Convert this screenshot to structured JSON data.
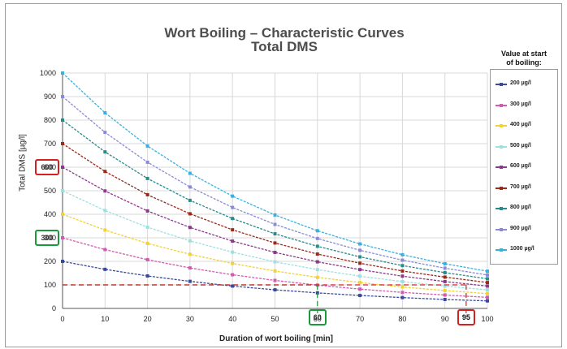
{
  "chart_data": {
    "type": "line",
    "title": "Wort Boiling – Characteristic Curves",
    "subtitle": "Total DMS",
    "xlabel": "Duration of wort boiling [min]",
    "ylabel": "Total DMS [µg/l]",
    "xlim": [
      0,
      100
    ],
    "ylim": [
      0,
      1000
    ],
    "x_ticks": [
      "0",
      "10",
      "20",
      "30",
      "40",
      "50",
      "60",
      "70",
      "80",
      "90",
      "100"
    ],
    "y_ticks": [
      "0",
      "100",
      "200",
      "300",
      "400",
      "500",
      "600",
      "700",
      "800",
      "900",
      "1000"
    ],
    "grid": true,
    "legend": {
      "position": "right",
      "title_line1": "Value at start",
      "title_line2": "of boiling:"
    },
    "x": [
      0,
      10,
      20,
      30,
      40,
      50,
      60,
      70,
      80,
      90,
      100
    ],
    "series": [
      {
        "name": "200 µg/l",
        "color": "#3a4a9a",
        "values": [
          200,
          166,
          138,
          115,
          95,
          79,
          66,
          55,
          46,
          38,
          32
        ]
      },
      {
        "name": "300 µg/l",
        "color": "#d05cb0",
        "values": [
          300,
          250,
          207,
          172,
          143,
          119,
          99,
          82,
          68,
          57,
          47
        ]
      },
      {
        "name": "400 µg/l",
        "color": "#f0d23a",
        "values": [
          400,
          333,
          276,
          230,
          191,
          159,
          132,
          110,
          91,
          76,
          63
        ]
      },
      {
        "name": "500 µg/l",
        "color": "#9ee0e0",
        "values": [
          500,
          416,
          345,
          287,
          239,
          198,
          165,
          137,
          114,
          95,
          79
        ]
      },
      {
        "name": "600 µg/l",
        "color": "#8a3a8a",
        "values": [
          600,
          499,
          414,
          344,
          286,
          238,
          198,
          165,
          137,
          114,
          95
        ]
      },
      {
        "name": "700 µg/l",
        "color": "#9a2a1a",
        "values": [
          700,
          582,
          483,
          402,
          334,
          278,
          231,
          192,
          159,
          133,
          110
        ]
      },
      {
        "name": "800 µg/l",
        "color": "#2a8a8a",
        "values": [
          800,
          665,
          552,
          459,
          382,
          317,
          264,
          219,
          182,
          152,
          126
        ]
      },
      {
        "name": "900 µg/l",
        "color": "#8a8ad8",
        "values": [
          900,
          748,
          621,
          516,
          429,
          357,
          297,
          247,
          205,
          171,
          142
        ]
      },
      {
        "name": "1000 µg/l",
        "color": "#3ab0e0",
        "values": [
          1000,
          831,
          690,
          574,
          477,
          397,
          330,
          274,
          228,
          190,
          158
        ]
      }
    ],
    "annotations": [
      {
        "label": "600",
        "color": "#d62020",
        "kind": "y"
      },
      {
        "label": "300",
        "color": "#1a9a3a",
        "kind": "y"
      },
      {
        "label": "60",
        "color": "#1a9a3a",
        "kind": "x"
      },
      {
        "label": "95",
        "color": "#d62020",
        "kind": "x"
      }
    ],
    "reference_lines": [
      {
        "y": 100,
        "from_x": 0,
        "to_x": 100,
        "color": "#1a9a3a"
      },
      {
        "y": 100,
        "from_x": 0,
        "to_x": 100,
        "color": "#d62020"
      },
      {
        "x": 60,
        "from_y": 0,
        "to_y": 100,
        "color": "#1a9a3a"
      },
      {
        "x": 95,
        "from_y": 0,
        "to_y": 100,
        "color": "#d62020"
      }
    ]
  }
}
